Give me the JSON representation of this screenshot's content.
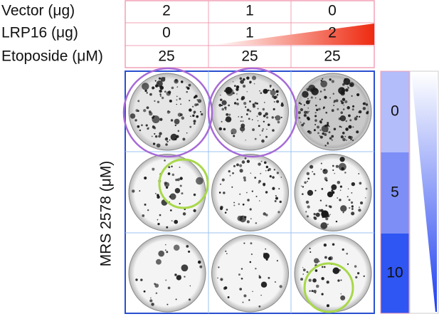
{
  "header": {
    "rows": [
      {
        "label": "Vector (μg)",
        "values": [
          "2",
          "1",
          "0"
        ]
      },
      {
        "label": "LRP16 (μg)",
        "values": [
          "0",
          "1",
          "2"
        ]
      },
      {
        "label": "Etoposide (μM)",
        "values": [
          "25",
          "25",
          "25"
        ]
      }
    ]
  },
  "side_label": "MRS 2578 (μM)",
  "scale_labels": [
    "0",
    "5",
    "10"
  ]
}
